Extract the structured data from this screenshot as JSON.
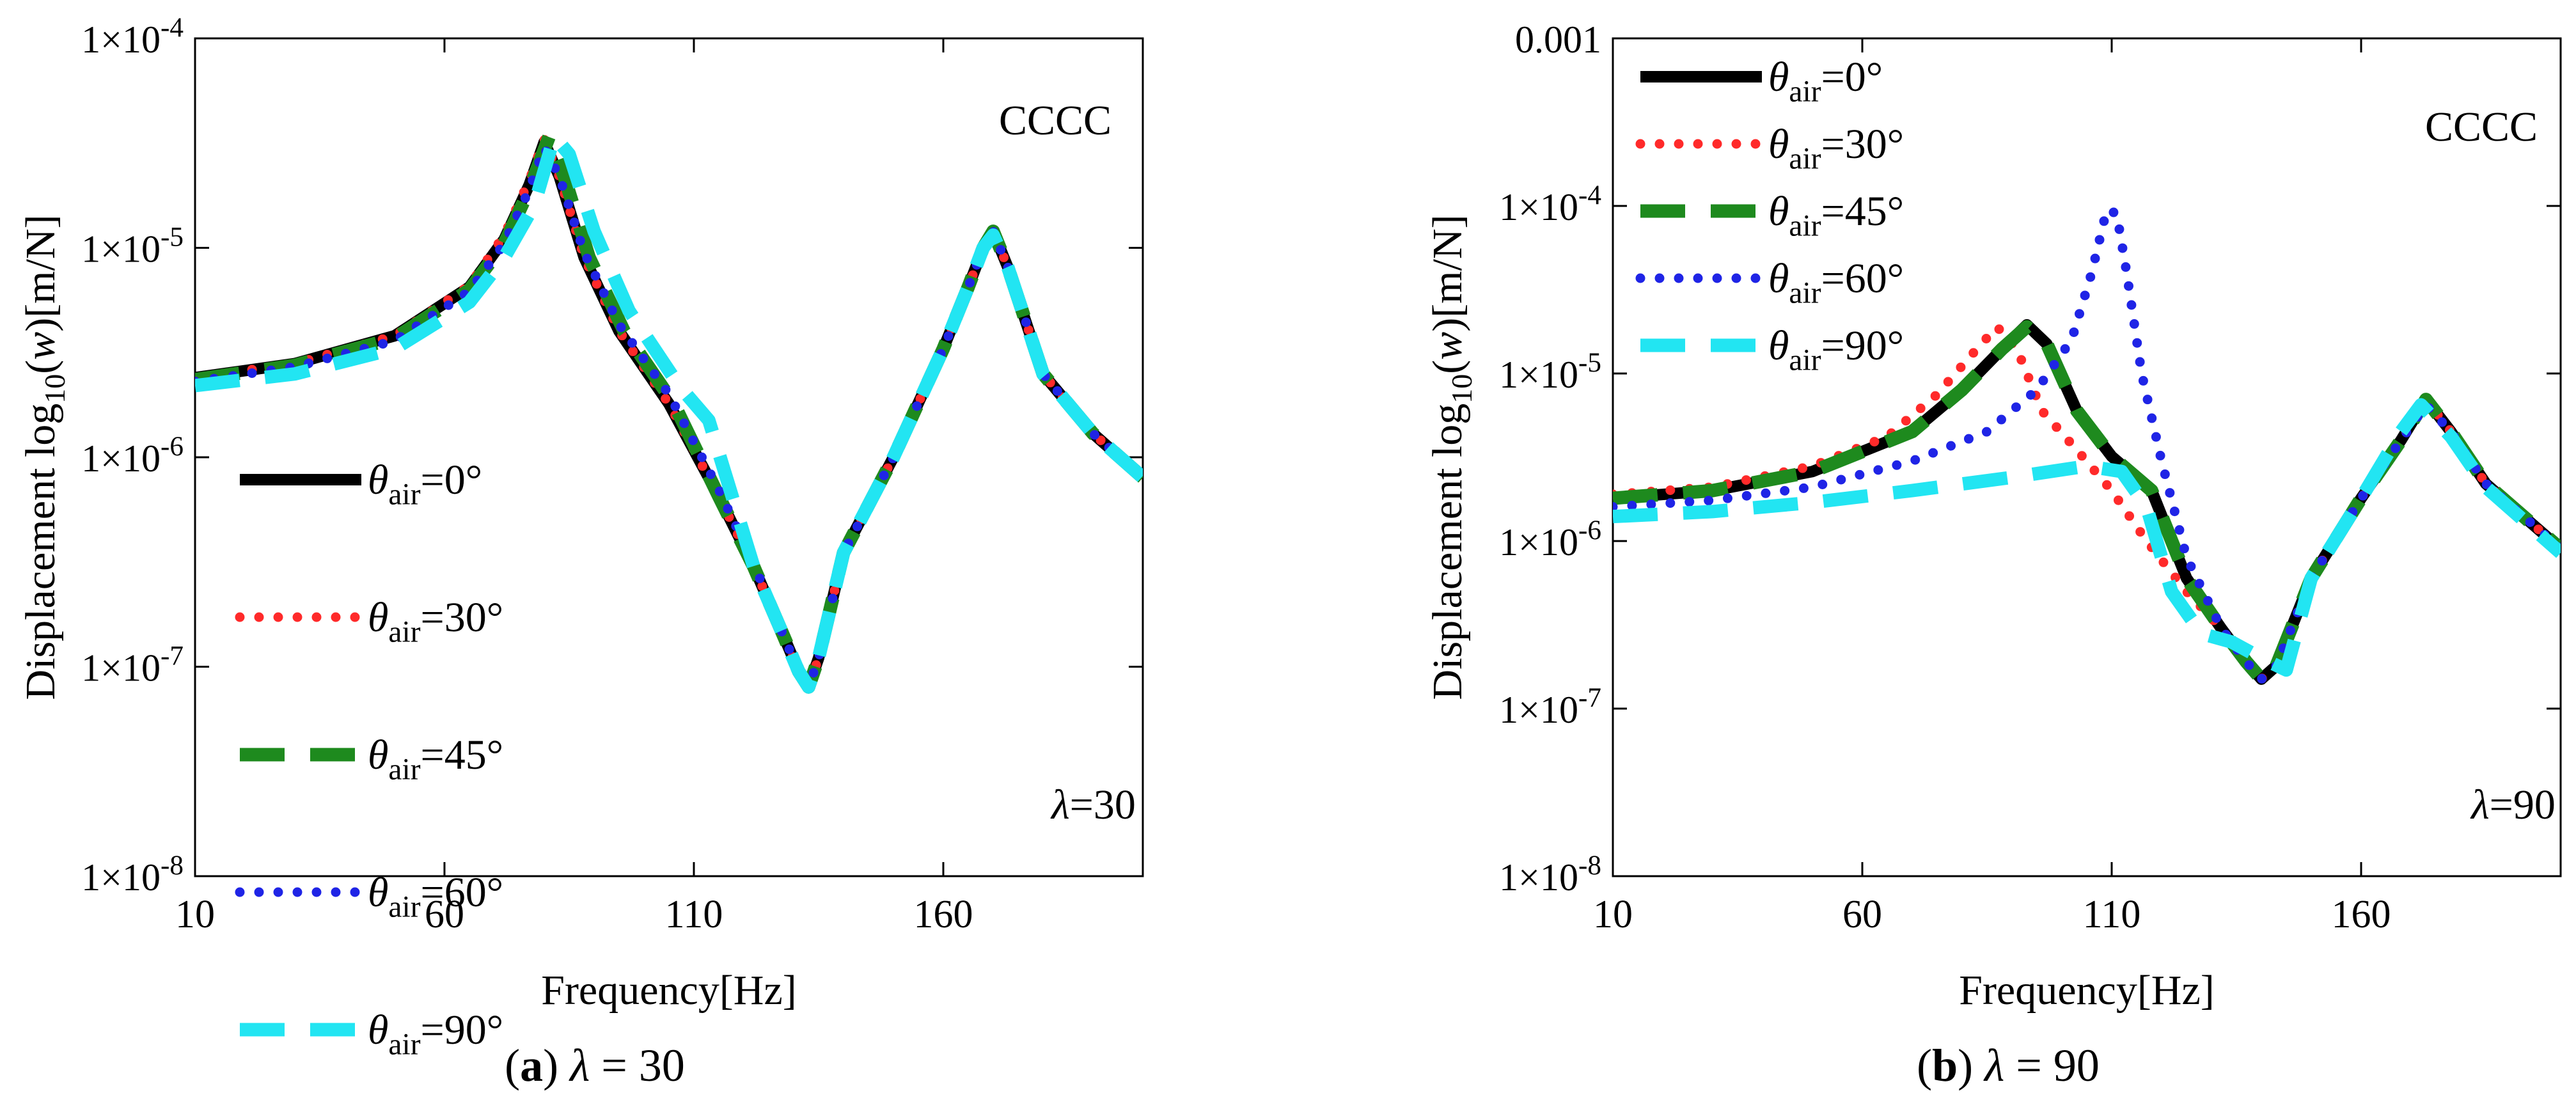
{
  "figure": {
    "panels": [
      {
        "caption": {
          "letter": "a",
          "text": "λ = 30"
        },
        "annotation_top": "CCCC",
        "annotation_bottom": "λ=30"
      },
      {
        "caption": {
          "letter": "b",
          "text": "λ = 90"
        },
        "annotation_top": "CCCC",
        "annotation_bottom": "λ=90"
      }
    ]
  },
  "colors": {
    "theta_0": "#000000",
    "theta_30": "#ff2a2a",
    "theta_45": "#1e8a1e",
    "theta_60": "#1f24e6",
    "theta_90": "#22e5f2"
  },
  "chart_data": [
    {
      "type": "line",
      "xlabel": "Frequency[Hz]",
      "ylabel": "Displacement log10(w)[m/N]",
      "xlim": [
        10,
        200
      ],
      "xticks": [
        10,
        60,
        110,
        160
      ],
      "yscale": "log",
      "ylim": [
        1e-08,
        0.0001
      ],
      "yticklabels": [
        "1×10^-8",
        "1×10^-7",
        "1×10^-6",
        "1×10^-5",
        "1×10^-4"
      ],
      "grid": false,
      "legend_position": "lower-left",
      "series": [
        {
          "name": "θair=0°",
          "style": "solid",
          "x": [
            10,
            30,
            50,
            65,
            72,
            77,
            80,
            83,
            88,
            95,
            105,
            115,
            122,
            128,
            131,
            133,
            135,
            140,
            150,
            160,
            165,
            168,
            170,
            173,
            180,
            190,
            200
          ],
          "y": [
            2.4e-06,
            2.8e-06,
            3.8e-06,
            6.5e-06,
            1.1e-05,
            2e-05,
            3.2e-05,
            2.2e-05,
            9e-06,
            4e-06,
            1.8e-06,
            6.5e-07,
            3e-07,
            1.4e-07,
            9.5e-08,
            8e-08,
            1.1e-07,
            3.5e-07,
            1e-06,
            3.3e-06,
            6.5e-06,
            1e-05,
            1.2e-05,
            8e-06,
            2.5e-06,
            1.3e-06,
            8e-07
          ]
        },
        {
          "name": "θair=30°",
          "style": "dotted",
          "x": [
            10,
            30,
            50,
            65,
            72,
            77,
            80,
            83,
            88,
            95,
            105,
            115,
            122,
            128,
            131,
            133,
            135,
            140,
            150,
            160,
            165,
            168,
            170,
            173,
            180,
            190,
            200
          ],
          "y": [
            2.4e-06,
            2.8e-06,
            3.8e-06,
            6.6e-06,
            1.15e-05,
            2.1e-05,
            3.3e-05,
            2.2e-05,
            9e-06,
            4e-06,
            1.8e-06,
            6.5e-07,
            3e-07,
            1.4e-07,
            9.5e-08,
            8e-08,
            1.1e-07,
            3.5e-07,
            1e-06,
            3.3e-06,
            6.5e-06,
            1e-05,
            1.2e-05,
            8e-06,
            2.5e-06,
            1.3e-06,
            8e-07
          ]
        },
        {
          "name": "θair=45°",
          "style": "dashed",
          "x": [
            10,
            30,
            50,
            65,
            72,
            77,
            81,
            84,
            89,
            96,
            106,
            115,
            122,
            128,
            131,
            133,
            135,
            140,
            150,
            160,
            165,
            168,
            170,
            173,
            180,
            190,
            200
          ],
          "y": [
            2.35e-06,
            2.75e-06,
            3.7e-06,
            6.3e-06,
            1.05e-05,
            1.9e-05,
            3.4e-05,
            2.2e-05,
            9e-06,
            4e-06,
            1.8e-06,
            6.5e-07,
            3e-07,
            1.4e-07,
            9.5e-08,
            8e-08,
            1.1e-07,
            3.5e-07,
            1e-06,
            3.3e-06,
            6.5e-06,
            1e-05,
            1.2e-05,
            8e-06,
            2.5e-06,
            1.3e-06,
            8e-07
          ]
        },
        {
          "name": "θair=60°",
          "style": "dotted",
          "x": [
            10,
            30,
            50,
            65,
            72,
            77,
            80,
            83,
            88,
            95,
            105,
            115,
            122,
            128,
            131,
            133,
            135,
            140,
            150,
            160,
            165,
            168,
            170,
            173,
            180,
            190,
            200
          ],
          "y": [
            2.3e-06,
            2.7e-06,
            3.6e-06,
            6.2e-06,
            1.05e-05,
            1.9e-05,
            3e-05,
            2.2e-05,
            9.5e-06,
            4.3e-06,
            2e-06,
            7e-07,
            3.1e-07,
            1.4e-07,
            9.5e-08,
            8e-08,
            1.1e-07,
            3.5e-07,
            1e-06,
            3.3e-06,
            6.5e-06,
            1e-05,
            1.2e-05,
            8e-06,
            2.5e-06,
            1.3e-06,
            8e-07
          ]
        },
        {
          "name": "θair=90°",
          "style": "dashed",
          "x": [
            10,
            30,
            50,
            65,
            72,
            78,
            82,
            85,
            90,
            97,
            107,
            113,
            122,
            128,
            131,
            133,
            135,
            140,
            150,
            160,
            165,
            168,
            170,
            173,
            180,
            190,
            200
          ],
          "y": [
            2.2e-06,
            2.5e-06,
            3.3e-06,
            5.5e-06,
            9e-06,
            1.6e-05,
            3.4e-05,
            2.8e-05,
            1.2e-05,
            5e-06,
            2.2e-06,
            1.5e-06,
            3e-07,
            1.4e-07,
            9.5e-08,
            8e-08,
            1.1e-07,
            3.5e-07,
            1e-06,
            3.3e-06,
            6.5e-06,
            1e-05,
            1.15e-05,
            8e-06,
            2.5e-06,
            1.3e-06,
            8e-07
          ]
        }
      ]
    },
    {
      "type": "line",
      "xlabel": "Frequency[Hz]",
      "ylabel": "Displacement log10(w)[m/N]",
      "xlim": [
        10,
        200
      ],
      "xticks": [
        10,
        60,
        110,
        160
      ],
      "yscale": "log",
      "ylim": [
        1e-08,
        0.001
      ],
      "yticklabels": [
        "1×10^-8",
        "1×10^-7",
        "1×10^-6",
        "1×10^-5",
        "1×10^-4",
        "0.001"
      ],
      "grid": false,
      "legend_position": "top-left",
      "series": [
        {
          "name": "θair=0°",
          "style": "solid",
          "x": [
            10,
            30,
            50,
            70,
            80,
            88,
            93,
            97,
            103,
            110,
            118,
            125,
            132,
            137,
            140,
            143,
            150,
            160,
            168,
            173,
            178,
            185,
            200
          ],
          "y": [
            1.8e-06,
            2e-06,
            2.6e-06,
            4.5e-06,
            8e-06,
            1.4e-05,
            1.95e-05,
            1.5e-05,
            6e-06,
            3.2e-06,
            2e-06,
            6e-07,
            3e-07,
            1.9e-07,
            1.5e-07,
            1.8e-07,
            6e-07,
            1.8e-06,
            4e-06,
            7e-06,
            4.5e-06,
            2.2e-06,
            9e-07
          ]
        },
        {
          "name": "θair=30°",
          "style": "dotted",
          "x": [
            10,
            30,
            50,
            65,
            75,
            82,
            87,
            91,
            96,
            103,
            110,
            117,
            125,
            132,
            137,
            140,
            143,
            150,
            160,
            168,
            173,
            178,
            185,
            200
          ],
          "y": [
            1.9e-06,
            2.1e-06,
            2.8e-06,
            4.2e-06,
            7.5e-06,
            1.3e-05,
            1.9e-05,
            1.4e-05,
            6e-06,
            3.5e-06,
            2e-06,
            1e-06,
            5e-07,
            3e-07,
            1.9e-07,
            1.5e-07,
            1.8e-07,
            6e-07,
            1.8e-06,
            4e-06,
            7e-06,
            4.5e-06,
            2.2e-06,
            9e-07
          ]
        },
        {
          "name": "θair=45°",
          "style": "dashed",
          "x": [
            10,
            30,
            50,
            70,
            80,
            88,
            93,
            97,
            103,
            110,
            118,
            125,
            132,
            137,
            140,
            143,
            150,
            160,
            168,
            173,
            178,
            185,
            200
          ],
          "y": [
            1.8e-06,
            2e-06,
            2.6e-06,
            4.5e-06,
            8e-06,
            1.4e-05,
            1.9e-05,
            1.5e-05,
            6e-06,
            3.2e-06,
            2e-06,
            6e-07,
            3e-07,
            1.9e-07,
            1.5e-07,
            1.8e-07,
            6e-07,
            1.8e-06,
            4e-06,
            7e-06,
            4.5e-06,
            2.2e-06,
            9e-07
          ]
        },
        {
          "name": "θair=60°",
          "style": "dotted",
          "x": [
            10,
            30,
            50,
            70,
            85,
            95,
            102,
            106,
            109,
            111,
            113,
            116,
            120,
            125,
            132,
            137,
            140,
            143,
            150,
            160,
            168,
            173,
            178,
            185,
            200
          ],
          "y": [
            1.6e-06,
            1.75e-06,
            2.1e-06,
            3e-06,
            4.5e-06,
            8e-06,
            1.6e-05,
            4e-05,
            9.5e-05,
            9e-05,
            4e-05,
            1e-05,
            3e-06,
            8e-07,
            3e-07,
            1.9e-07,
            1.5e-07,
            1.8e-07,
            6e-07,
            1.8e-06,
            4e-06,
            6.5e-06,
            4.5e-06,
            2.2e-06,
            9e-07
          ]
        },
        {
          "name": "θair=90°",
          "style": "dashed",
          "x": [
            10,
            30,
            50,
            70,
            90,
            105,
            112,
            117,
            122,
            128,
            134,
            140,
            145,
            150,
            160,
            168,
            172,
            178,
            185,
            200
          ],
          "y": [
            1.4e-06,
            1.5e-06,
            1.7e-06,
            2e-06,
            2.4e-06,
            2.8e-06,
            2.6e-06,
            1.6e-06,
            5e-07,
            2.8e-07,
            2.5e-07,
            2e-07,
            1.7e-07,
            6e-07,
            1.8e-06,
            4.5e-06,
            6.5e-06,
            4.2e-06,
            2.1e-06,
            8.5e-07
          ]
        }
      ]
    }
  ]
}
